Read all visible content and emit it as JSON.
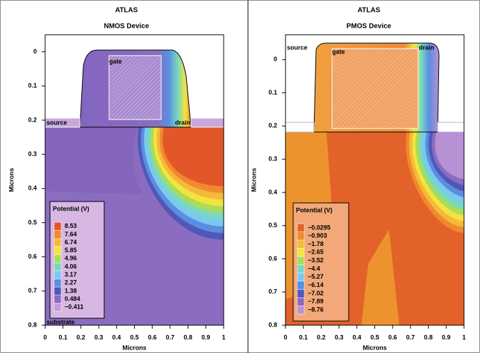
{
  "chart_data": [
    {
      "type": "contour",
      "title": "ATLAS",
      "subtitle": "NMOS Device",
      "xlabel": "Microns",
      "ylabel": "Microns",
      "xlim": [
        0,
        1
      ],
      "ylim": [
        -0.05,
        0.8
      ],
      "y_inverted": true,
      "xticks": [
        0,
        0.1,
        0.2,
        0.3,
        0.4,
        0.5,
        0.6,
        0.7,
        0.8,
        0.9,
        1
      ],
      "yticks": [
        0,
        0.1,
        0.2,
        0.3,
        0.4,
        0.5,
        0.6,
        0.7,
        0.8
      ],
      "legend": {
        "title": "Potential (V)",
        "levels": [
          8.53,
          7.64,
          6.74,
          5.85,
          4.96,
          4.06,
          3.17,
          2.27,
          1.38,
          0.484,
          {
            "value": -0.411,
            "label": "−0.411"
          }
        ],
        "colors": [
          "#e2562a",
          "#f08a2c",
          "#f6b83a",
          "#f2e43e",
          "#a8dc5a",
          "#78d8c0",
          "#7cc8f0",
          "#5a8ee0",
          "#5058b8",
          "#8a6cc0",
          "#c89ad8"
        ]
      },
      "annotations": [
        "source",
        "gate",
        "drain",
        "substrate"
      ]
    },
    {
      "type": "contour",
      "title": "ATLAS",
      "subtitle": "PMOS Device",
      "xlabel": "Microns",
      "ylabel": "Microns",
      "xlim": [
        0,
        1
      ],
      "ylim": [
        -0.075,
        0.8
      ],
      "y_inverted": true,
      "xticks": [
        0,
        0.1,
        0.2,
        0.3,
        0.4,
        0.5,
        0.6,
        0.7,
        0.8,
        0.9,
        1
      ],
      "yticks": [
        0,
        0.1,
        0.2,
        0.3,
        0.4,
        0.5,
        0.6,
        0.7,
        0.8
      ],
      "legend": {
        "title": "Potential (V)",
        "levels": [
          {
            "value": -0.0295,
            "label": "−0.0295"
          },
          {
            "value": -0.903,
            "label": "−0.903"
          },
          {
            "value": -1.78,
            "label": "−1.78"
          },
          {
            "value": -2.65,
            "label": "−2.65"
          },
          {
            "value": -3.52,
            "label": "−3.52"
          },
          {
            "value": -4.4,
            "label": "−4.4"
          },
          {
            "value": -5.27,
            "label": "−5.27"
          },
          {
            "value": -6.14,
            "label": "−6.14"
          },
          {
            "value": -7.02,
            "label": "−7.02"
          },
          {
            "value": -7.89,
            "label": "−7.89"
          },
          {
            "value": -8.76,
            "label": "−8.76"
          }
        ],
        "colors": [
          "#e2622a",
          "#f08a2c",
          "#f6b83a",
          "#f2e43e",
          "#a8dc5a",
          "#78d8c0",
          "#7cc8f0",
          "#5a8ee0",
          "#5058b8",
          "#8a6cc0",
          "#b890d4"
        ]
      },
      "annotations": [
        "source",
        "gate",
        "drain"
      ]
    }
  ]
}
